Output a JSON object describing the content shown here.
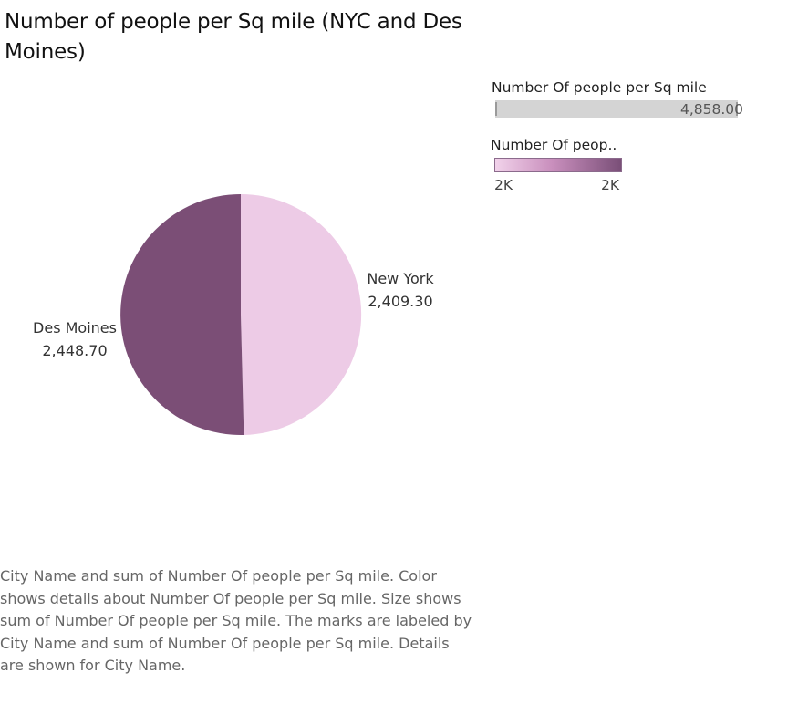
{
  "title": "Number of people per Sq mile (NYC and Des Moines)",
  "legend_size": {
    "title": "Number Of people per Sq mile",
    "value": "4,858.00"
  },
  "legend_color": {
    "title": "Number Of peop..",
    "min_label": "2K",
    "max_label": "2K",
    "color_low": "#F1D2EA",
    "color_high": "#7A4F78"
  },
  "chart_data": {
    "type": "pie",
    "categories": [
      "New York",
      "Des Moines"
    ],
    "values": [
      2409.3,
      2448.7
    ],
    "value_labels": [
      "2,409.30",
      "2,448.70"
    ],
    "colors": [
      "#EDCBE6",
      "#7B4E76"
    ]
  },
  "caption": "City Name and sum of Number Of people per Sq mile.  Color shows details about Number Of people per Sq mile.  Size shows sum of Number Of people per Sq mile.  The marks are labeled by City Name and sum of Number Of people per Sq mile.  Details are shown for City Name."
}
